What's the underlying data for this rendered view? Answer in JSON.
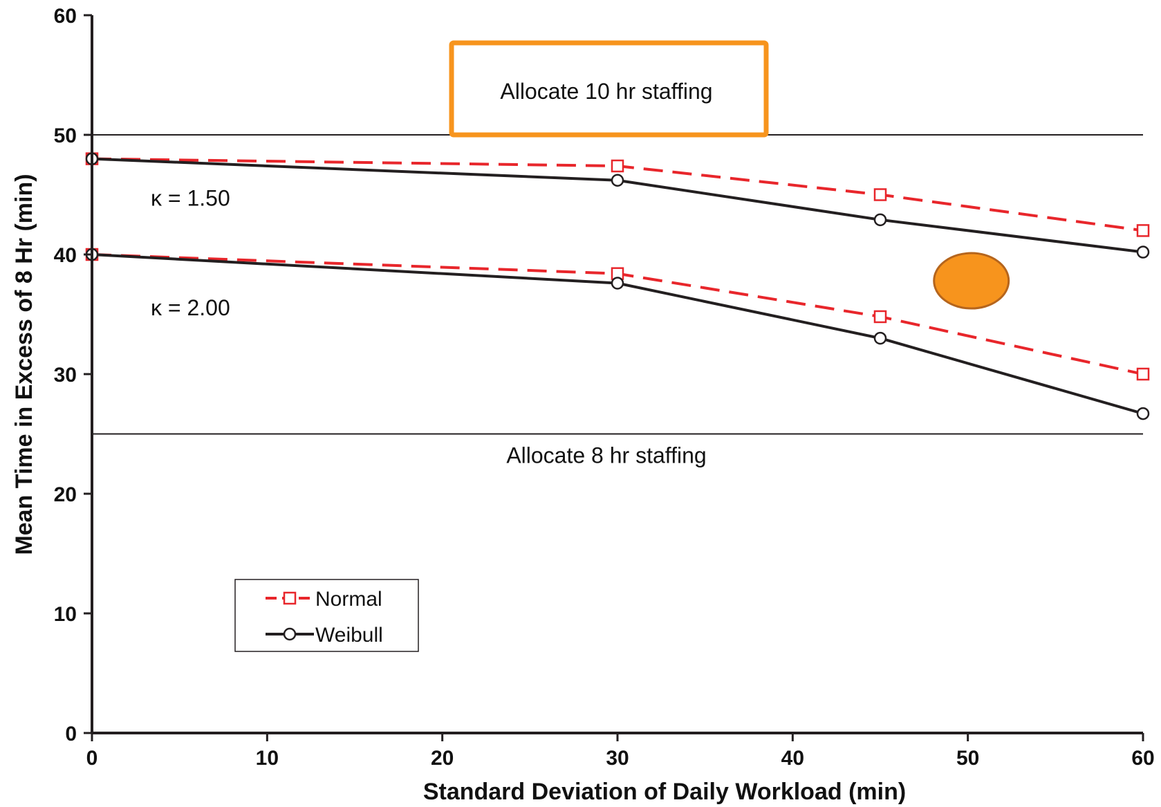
{
  "chart_data": {
    "type": "line",
    "title": "",
    "xlabel": "Standard Deviation of Daily Workload (min)",
    "ylabel": "Mean Time in Excess of 8 Hr (min)",
    "xlim": [
      0,
      60
    ],
    "ylim": [
      0,
      60
    ],
    "xticks": [
      0,
      10,
      20,
      30,
      40,
      50,
      60
    ],
    "yticks": [
      0,
      10,
      20,
      30,
      40,
      50,
      60
    ],
    "grid": false,
    "legend_position": "lower-left",
    "x": [
      0,
      30,
      45,
      60
    ],
    "series": [
      {
        "name": "Normal",
        "group": "κ = 1.50",
        "style": "dashed",
        "marker": "square",
        "color": "#e8262b",
        "values": [
          48.0,
          47.4,
          45.0,
          42.0
        ]
      },
      {
        "name": "Weibull",
        "group": "κ = 1.50",
        "style": "solid",
        "marker": "circle",
        "color": "#231f20",
        "values": [
          48.0,
          46.2,
          42.9,
          40.2
        ]
      },
      {
        "name": "Normal",
        "group": "κ = 2.00",
        "style": "dashed",
        "marker": "square",
        "color": "#e8262b",
        "values": [
          40.0,
          38.4,
          34.8,
          30.0
        ]
      },
      {
        "name": "Weibull",
        "group": "κ = 2.00",
        "style": "solid",
        "marker": "circle",
        "color": "#231f20",
        "values": [
          40.0,
          37.6,
          33.0,
          26.7
        ]
      }
    ],
    "reference_lines": [
      {
        "y": 50,
        "label": "Allocate 10 hr staffing",
        "label_boxed": true,
        "box_color": "#f7941d"
      },
      {
        "y": 25,
        "label": "Allocate 8 hr staffing",
        "label_boxed": false
      }
    ],
    "group_labels": [
      "κ = 1.50",
      "κ = 2.00"
    ],
    "highlight": {
      "shape": "ellipse",
      "x": 50.2,
      "y": 37.8,
      "color": "#f7941d"
    },
    "legend": [
      {
        "label": "Normal",
        "style": "dashed",
        "marker": "square",
        "color": "#e8262b"
      },
      {
        "label": "Weibull",
        "style": "solid",
        "marker": "circle",
        "color": "#231f20"
      }
    ]
  }
}
